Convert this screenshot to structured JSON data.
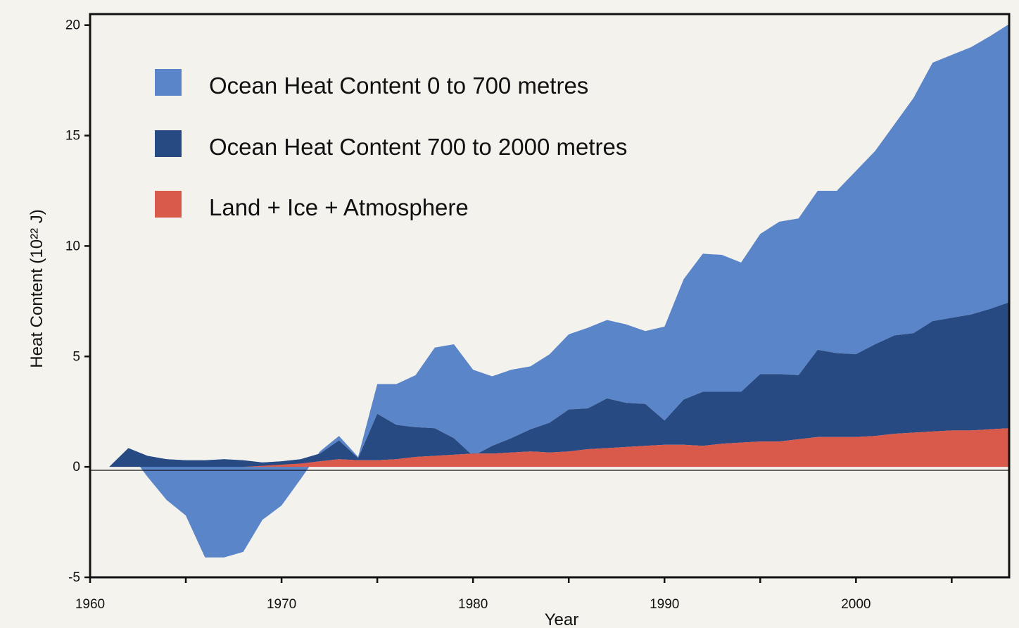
{
  "chart_data": {
    "type": "area",
    "stacked": true,
    "title": "",
    "xlabel": "Year",
    "ylabel": "Heat Content (10²² J)",
    "xlim": [
      1960,
      2008
    ],
    "ylim": [
      -5,
      20.5
    ],
    "x_ticks": [
      "1960",
      "1970",
      "1980",
      "1990",
      "2000"
    ],
    "y_ticks": [
      "-5",
      "0",
      "5",
      "10",
      "15",
      "20"
    ],
    "grid": false,
    "legend_position": "top-left",
    "x": [
      1960,
      1961,
      1962,
      1963,
      1964,
      1965,
      1966,
      1967,
      1968,
      1969,
      1970,
      1971,
      1972,
      1973,
      1974,
      1975,
      1976,
      1977,
      1978,
      1979,
      1980,
      1981,
      1982,
      1983,
      1984,
      1985,
      1986,
      1987,
      1988,
      1989,
      1990,
      1991,
      1992,
      1993,
      1994,
      1995,
      1996,
      1997,
      1998,
      1999,
      2000,
      2001,
      2002,
      2003,
      2004,
      2005,
      2006,
      2007,
      2008
    ],
    "series": [
      {
        "name": "Land + Ice + Atmosphere",
        "color": "#d9594a",
        "values": [
          0,
          0,
          0,
          0,
          0,
          0,
          0,
          0,
          0,
          0.05,
          0.1,
          0.15,
          0.25,
          0.35,
          0.3,
          0.3,
          0.35,
          0.45,
          0.5,
          0.55,
          0.6,
          0.6,
          0.65,
          0.7,
          0.65,
          0.7,
          0.8,
          0.85,
          0.9,
          0.95,
          1.0,
          1.0,
          0.95,
          1.05,
          1.1,
          1.15,
          1.15,
          1.25,
          1.35,
          1.35,
          1.35,
          1.4,
          1.5,
          1.55,
          1.6,
          1.65,
          1.65,
          1.7,
          1.75
        ]
      },
      {
        "name": "Ocean Heat Content 700 to 2000 metres",
        "color": "#284a82",
        "values": [
          0,
          0,
          0.85,
          0.5,
          0.35,
          0.3,
          0.3,
          0.35,
          0.3,
          0.15,
          0.15,
          0.2,
          0.35,
          0.85,
          0.1,
          2.1,
          1.55,
          1.35,
          1.25,
          0.75,
          -0.1,
          0.35,
          0.65,
          1.0,
          1.35,
          1.9,
          1.85,
          2.25,
          2.0,
          1.9,
          1.1,
          2.05,
          2.45,
          2.35,
          2.3,
          3.05,
          3.05,
          2.9,
          3.95,
          3.8,
          3.75,
          4.15,
          4.45,
          4.5,
          5.0,
          5.1,
          5.25,
          5.45,
          5.7
        ]
      },
      {
        "name": "Ocean Heat Content 0 to 700 metres",
        "color": "#5b85c9",
        "values": [
          0,
          0,
          -0.15,
          -0.95,
          -1.85,
          -2.5,
          -4.4,
          -4.45,
          -4.15,
          -2.6,
          -2.0,
          -0.9,
          0.1,
          0.2,
          0.05,
          1.35,
          1.85,
          2.35,
          3.65,
          4.25,
          3.9,
          3.15,
          3.1,
          2.85,
          3.1,
          3.4,
          3.65,
          3.55,
          3.55,
          3.3,
          4.25,
          5.45,
          6.25,
          6.2,
          5.85,
          6.35,
          6.9,
          7.1,
          7.2,
          7.35,
          8.3,
          8.75,
          9.55,
          10.65,
          11.7,
          11.9,
          12.1,
          12.35,
          12.6
        ]
      }
    ]
  }
}
